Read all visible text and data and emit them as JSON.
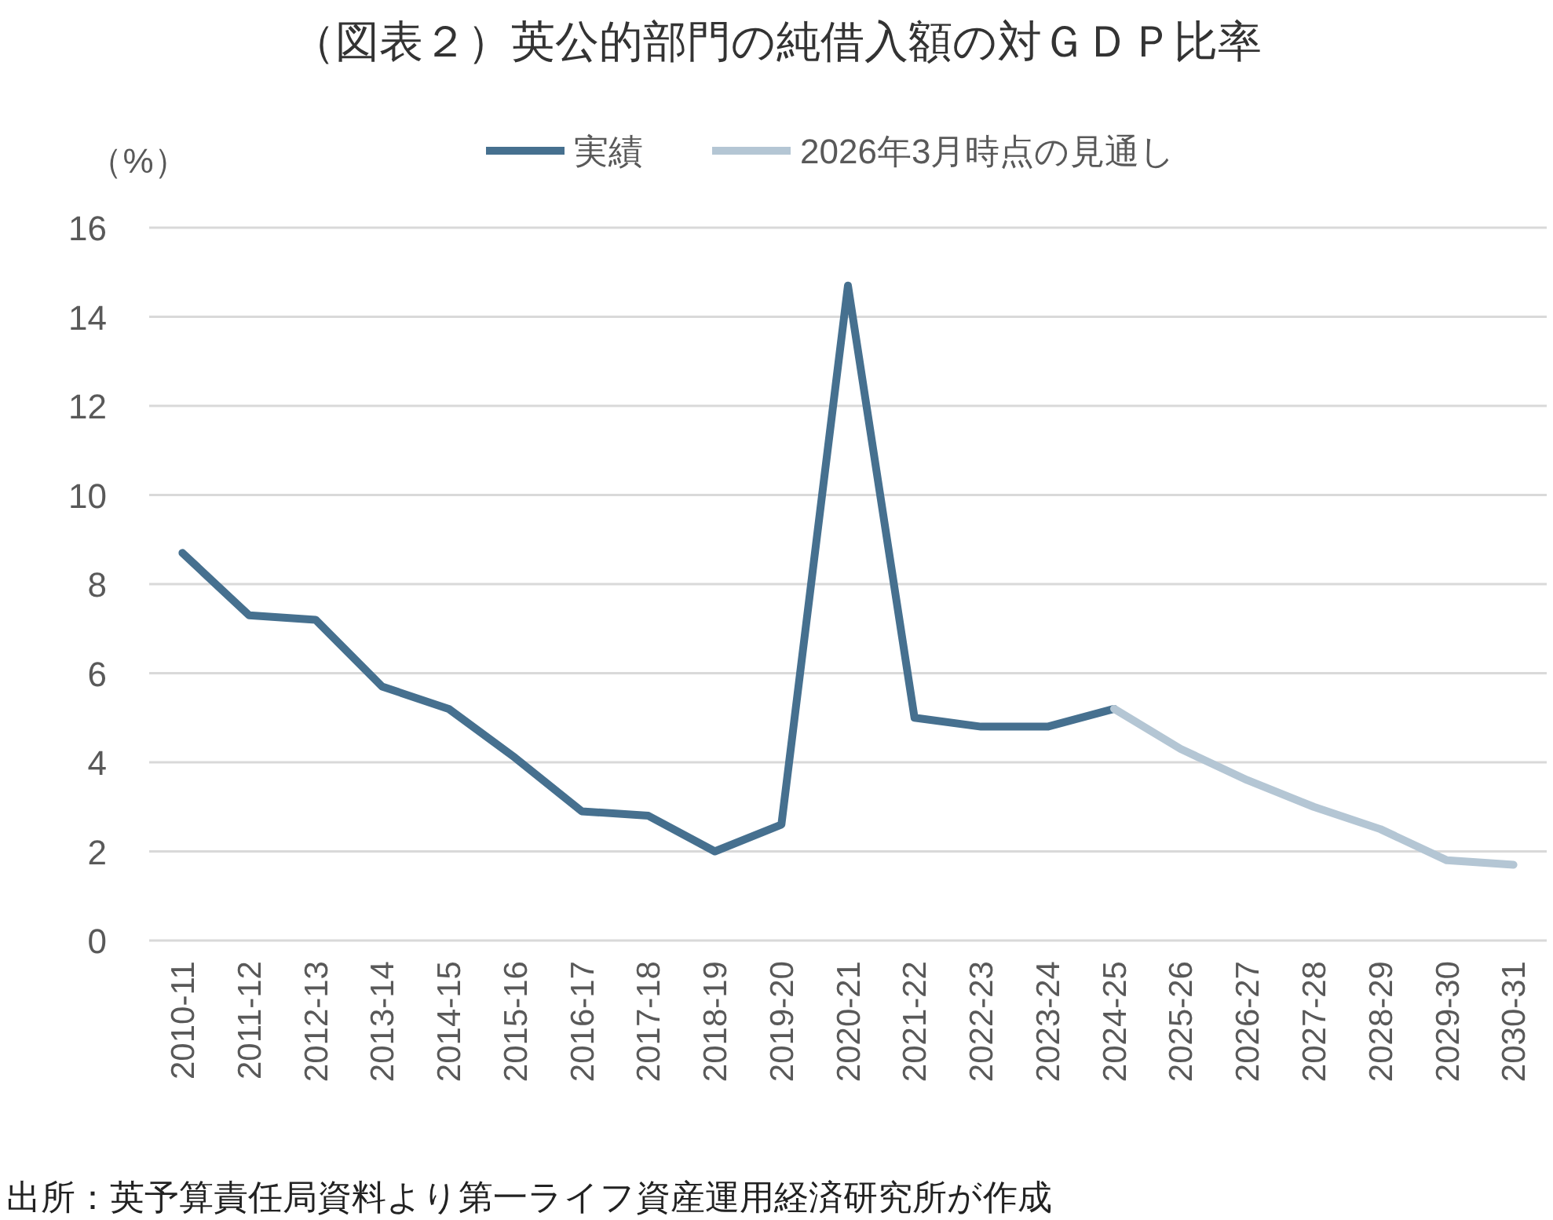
{
  "chart_data": {
    "type": "line",
    "title": "（図表２）英公的部門の純借入額の対ＧＤＰ比率",
    "ylabel": "（%）",
    "categories": [
      "2010-11",
      "2011-12",
      "2012-13",
      "2013-14",
      "2014-15",
      "2015-16",
      "2016-17",
      "2017-18",
      "2018-19",
      "2019-20",
      "2020-21",
      "2021-22",
      "2022-23",
      "2023-24",
      "2024-25",
      "2025-26",
      "2026-27",
      "2027-28",
      "2028-29",
      "2029-30",
      "2030-31"
    ],
    "series": [
      {
        "name": "実績",
        "color": "#46708f",
        "values": [
          8.7,
          7.3,
          7.2,
          5.7,
          5.2,
          4.1,
          2.9,
          2.8,
          2.0,
          2.6,
          14.7,
          5.0,
          4.8,
          4.8,
          5.2,
          null,
          null,
          null,
          null,
          null,
          null
        ]
      },
      {
        "name": "2026年3月時点の見通し",
        "color": "#b4c6d4",
        "values": [
          null,
          null,
          null,
          null,
          null,
          null,
          null,
          null,
          null,
          null,
          null,
          null,
          null,
          null,
          5.2,
          4.3,
          3.6,
          3.0,
          2.5,
          1.8,
          1.7
        ]
      }
    ],
    "ylim": [
      0,
      16
    ],
    "yticks": [
      0,
      2,
      4,
      6,
      8,
      10,
      12,
      14,
      16
    ],
    "grid": "y",
    "legend": "top",
    "marker": "none",
    "line_style": "solid",
    "annotations": [
      "出所：英予算責任局資料より第一ライフ資産運用経済研究所が作成"
    ]
  }
}
